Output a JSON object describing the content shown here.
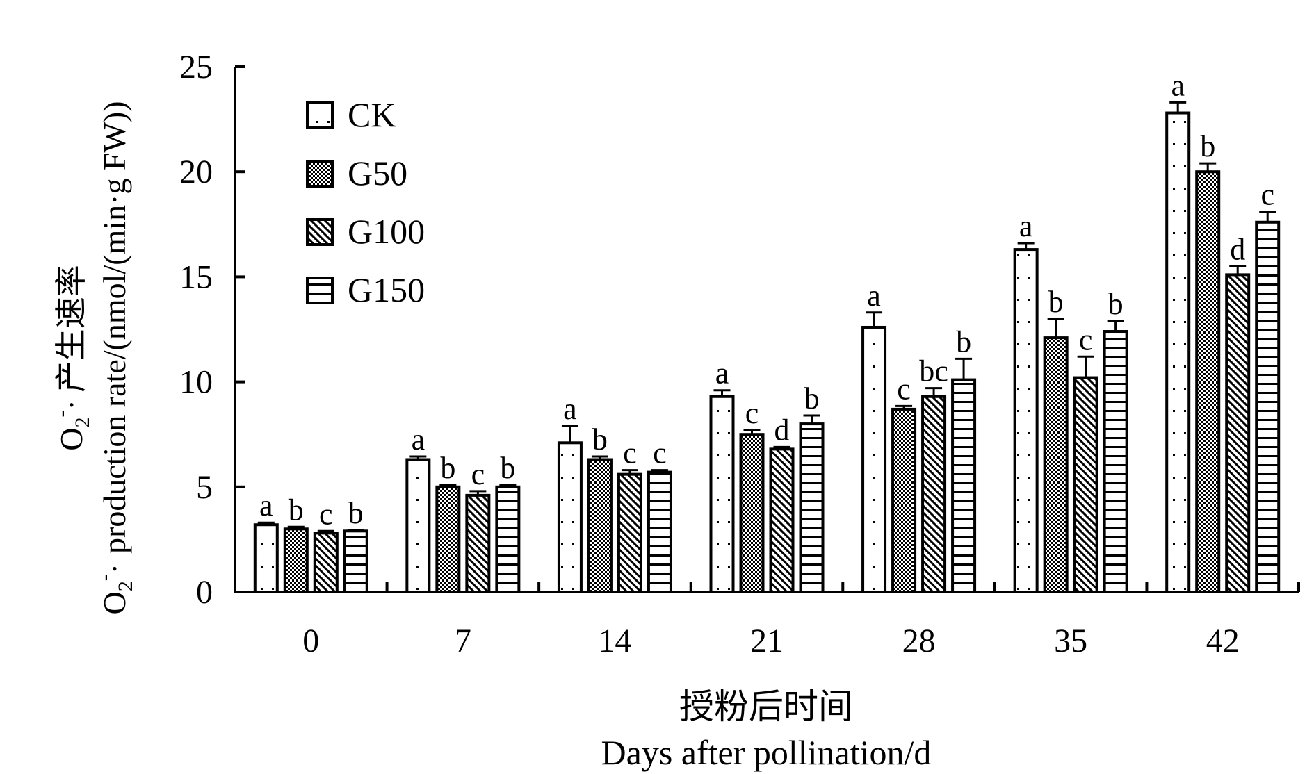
{
  "chart_data": {
    "type": "bar",
    "categories": [
      "0",
      "7",
      "14",
      "21",
      "28",
      "35",
      "42"
    ],
    "ylim": [
      0,
      25
    ],
    "yticks": [
      0,
      5,
      10,
      15,
      20,
      25
    ],
    "ylabel_cn": "产生速率",
    "ylabel_en_unit": "production rate/(nmol/(min·g FW))",
    "ylabel_symbol": "O",
    "ylabel_sub": "2",
    "ylabel_sup": "-",
    "ylabel_dot": "·",
    "xlabel_cn": "授粉后时间",
    "xlabel_en": "Days after pollination/d",
    "legend_position": "top-left",
    "series": [
      {
        "name": "CK",
        "pattern": "dots-sparse",
        "values": [
          3.2,
          6.3,
          7.1,
          9.3,
          12.6,
          16.3,
          22.8
        ],
        "errors": [
          0.1,
          0.15,
          0.8,
          0.3,
          0.7,
          0.3,
          0.5
        ],
        "letters": [
          "a",
          "a",
          "a",
          "a",
          "a",
          "a",
          "a"
        ]
      },
      {
        "name": "G50",
        "pattern": "dots-dense",
        "values": [
          3.0,
          5.0,
          6.3,
          7.5,
          8.7,
          12.1,
          20.0
        ],
        "errors": [
          0.1,
          0.1,
          0.15,
          0.2,
          0.15,
          0.9,
          0.4
        ],
        "letters": [
          "b",
          "b",
          "b",
          "c",
          "c",
          "b",
          "b"
        ]
      },
      {
        "name": "G100",
        "pattern": "diagonal",
        "values": [
          2.8,
          4.6,
          5.6,
          6.8,
          9.3,
          10.2,
          15.1
        ],
        "errors": [
          0.1,
          0.2,
          0.2,
          0.1,
          0.4,
          1.0,
          0.4
        ],
        "letters": [
          "c",
          "c",
          "c",
          "d",
          "bc",
          "c",
          "d"
        ]
      },
      {
        "name": "G150",
        "pattern": "horizontal",
        "values": [
          2.9,
          5.0,
          5.7,
          8.0,
          10.1,
          12.4,
          17.6
        ],
        "errors": [
          0.05,
          0.1,
          0.1,
          0.4,
          1.0,
          0.5,
          0.5
        ],
        "letters": [
          "b",
          "b",
          "c",
          "b",
          "b",
          "b",
          "c"
        ]
      }
    ]
  }
}
